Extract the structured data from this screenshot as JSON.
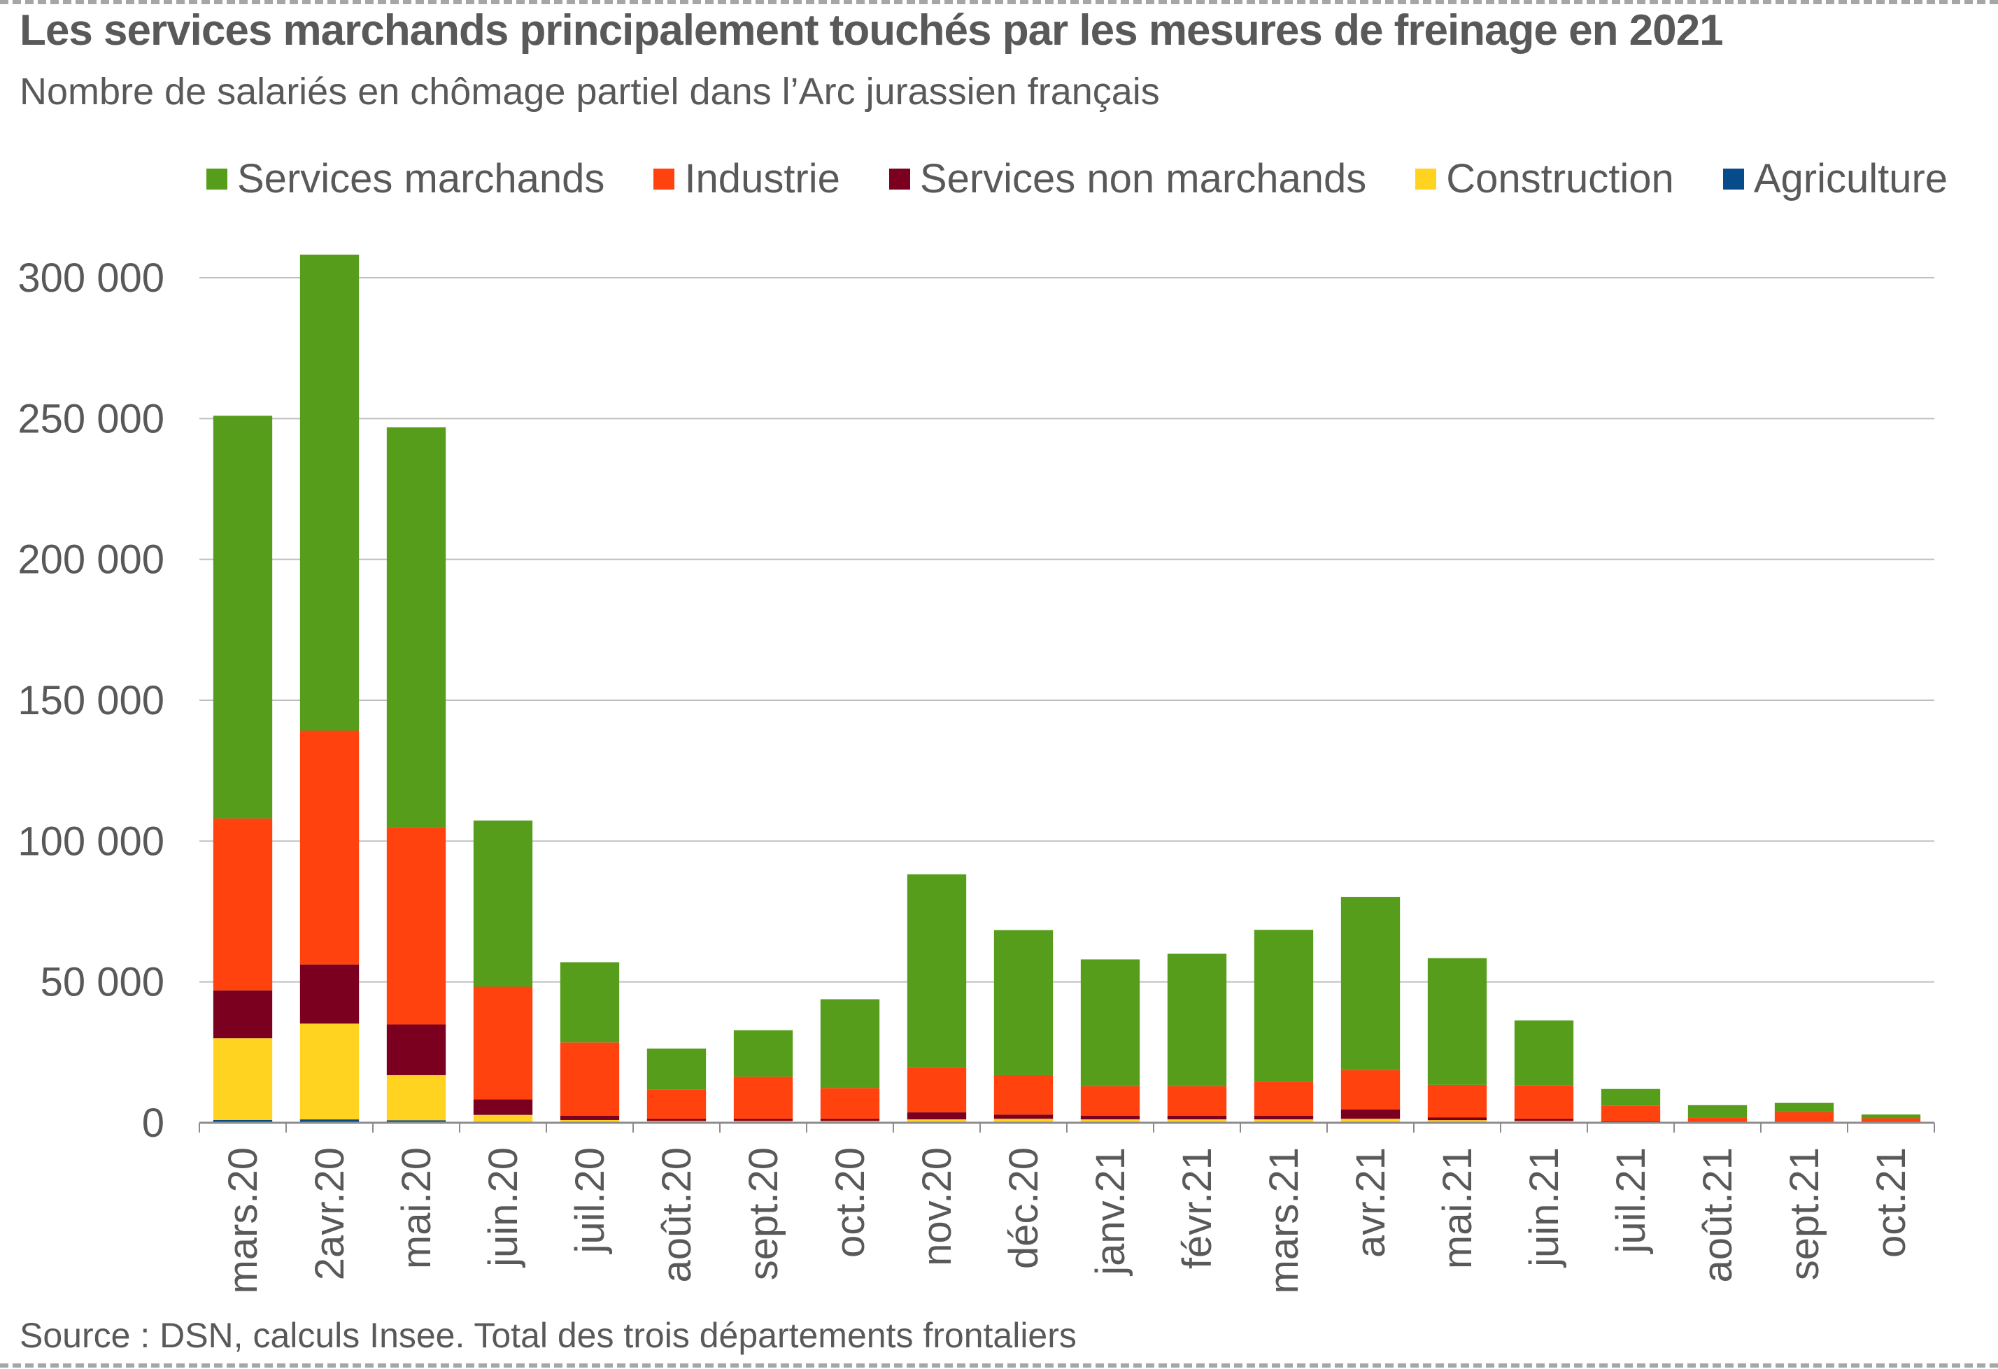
{
  "title": "Les services marchands principalement touchés par les mesures de freinage en 2021",
  "subtitle": "Nombre de salariés en chômage partiel dans l’Arc jurassien français",
  "source": "Source : DSN, calculs Insee. Total des trois départements frontaliers",
  "chart_data": {
    "type": "bar",
    "stacked": true,
    "title": "Les services marchands principalement touchés par les mesures de freinage en 2021",
    "subtitle": "Nombre de salariés en chômage partiel dans l’Arc jurassien français",
    "xlabel": "",
    "ylabel": "",
    "ylim": [
      0,
      300000
    ],
    "yticks": [
      0,
      50000,
      100000,
      150000,
      200000,
      250000,
      300000
    ],
    "ytick_labels": [
      "0",
      "50 000",
      "100 000",
      "150 000",
      "200 000",
      "250 000",
      "300 000"
    ],
    "grid": true,
    "legend_position": "top",
    "categories": [
      "mars.20",
      "2avr.20",
      "mai.20",
      "juin.20",
      "juil.20",
      "août.20",
      "sept.20",
      "oct.20",
      "nov.20",
      "déc.20",
      "janv.21",
      "févr.21",
      "mars.21",
      "avr.21",
      "mai.21",
      "juin.21",
      "juil.21",
      "août.21",
      "sept.21",
      "oct.21"
    ],
    "series": [
      {
        "name": "Agriculture",
        "color": "#084b8a",
        "values": [
          1000,
          1200,
          900,
          300,
          200,
          150,
          150,
          150,
          200,
          200,
          200,
          200,
          200,
          200,
          150,
          150,
          100,
          50,
          50,
          30
        ]
      },
      {
        "name": "Construction",
        "color": "#ffd320",
        "values": [
          29000,
          34000,
          16000,
          2500,
          800,
          500,
          500,
          500,
          1000,
          1200,
          1000,
          1000,
          1000,
          1200,
          800,
          500,
          200,
          100,
          100,
          50
        ]
      },
      {
        "name": "Services non marchands",
        "color": "#7b0020",
        "values": [
          17000,
          21000,
          18000,
          5500,
          1500,
          700,
          700,
          700,
          2500,
          1500,
          1300,
          1300,
          1300,
          3300,
          1000,
          700,
          200,
          100,
          100,
          50
        ]
      },
      {
        "name": "Industrie",
        "color": "#ff420e",
        "values": [
          61000,
          83000,
          70000,
          40000,
          26000,
          10500,
          15000,
          11000,
          16000,
          14000,
          10500,
          10500,
          12000,
          14000,
          11500,
          12000,
          5500,
          1500,
          3500,
          1500
        ]
      },
      {
        "name": "Services marchands",
        "color": "#579d1c",
        "values": [
          143000,
          169000,
          142000,
          59000,
          28500,
          14500,
          16500,
          31500,
          68500,
          51500,
          45000,
          47000,
          54000,
          61500,
          45000,
          23000,
          6000,
          4500,
          3300,
          1300
        ]
      }
    ],
    "legend_order": [
      "Services marchands",
      "Industrie",
      "Services non marchands",
      "Construction",
      "Agriculture"
    ]
  }
}
